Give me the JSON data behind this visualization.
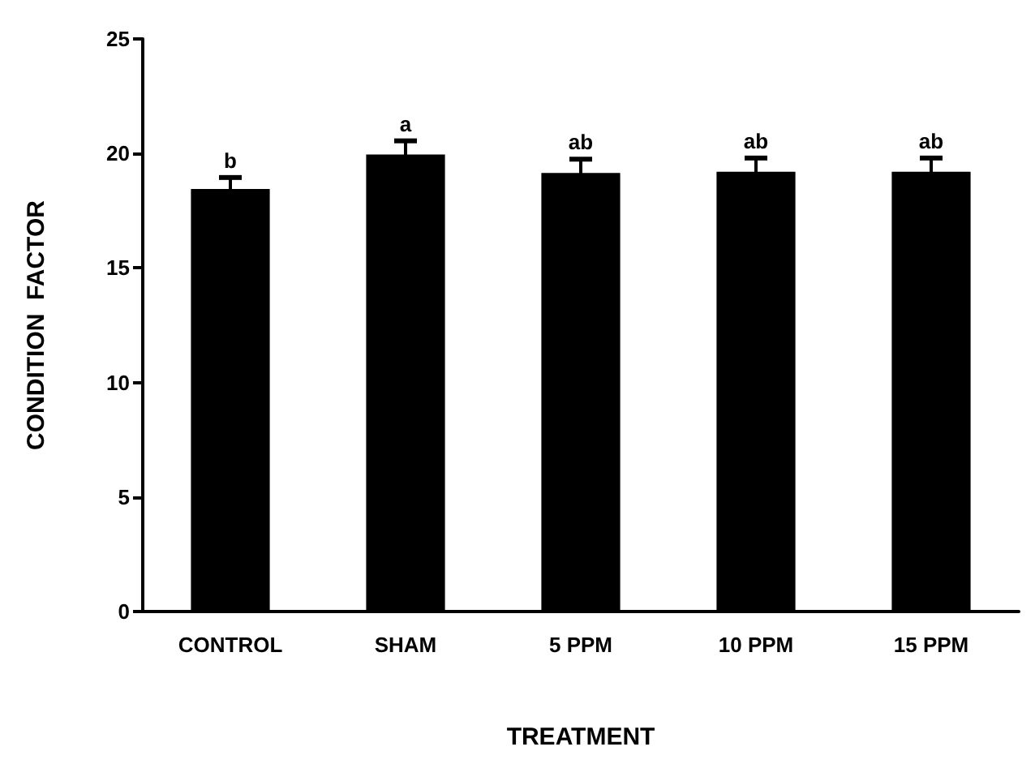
{
  "chart_data": {
    "type": "bar",
    "xlabel": "TREATMENT",
    "ylabel": "CONDITION  FACTOR",
    "categories": [
      "CONTROL",
      "SHAM",
      "5 PPM",
      "10 PPM",
      "15 PPM"
    ],
    "values": [
      18.45,
      19.95,
      19.15,
      19.2,
      19.2
    ],
    "errors": [
      0.5,
      0.6,
      0.6,
      0.6,
      0.6
    ],
    "color": "#000000",
    "ylim": [
      0,
      25
    ],
    "yticks": [
      0,
      5,
      10,
      15,
      20,
      25
    ],
    "annotations": [
      {
        "text": "b",
        "x": "CONTROL",
        "y": 18.95
      },
      {
        "text": "a",
        "x": "SHAM",
        "y": 20.55
      },
      {
        "text": "ab",
        "x": "5 PPM",
        "y": 19.75
      },
      {
        "text": "ab",
        "x": "10 PPM",
        "y": 19.8
      },
      {
        "text": "ab",
        "x": "15 PPM",
        "y": 19.8
      }
    ]
  }
}
